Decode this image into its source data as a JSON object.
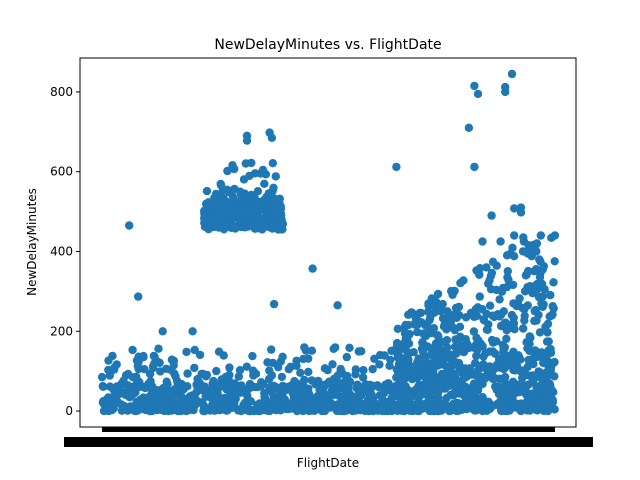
{
  "chart_data": {
    "type": "scatter",
    "title": "NewDelayMinutes vs. FlightDate",
    "xlabel": "FlightDate",
    "ylabel": "NewDelayMinutes",
    "ylim": [
      -40,
      885
    ],
    "yticks": [
      0,
      200,
      400,
      600,
      800
    ],
    "x_tick_labels_overlapping": true,
    "grid": false,
    "legend": "none",
    "marker_color": "#1f77b4",
    "x_domain_index": [
      0,
      1
    ],
    "notable_points": [
      {
        "x": 0.06,
        "y": 465
      },
      {
        "x": 0.08,
        "y": 287
      },
      {
        "x": 0.134,
        "y": 200
      },
      {
        "x": 0.2,
        "y": 200
      },
      {
        "x": 0.32,
        "y": 690
      },
      {
        "x": 0.32,
        "y": 678
      },
      {
        "x": 0.37,
        "y": 698
      },
      {
        "x": 0.375,
        "y": 685
      },
      {
        "x": 0.38,
        "y": 268
      },
      {
        "x": 0.465,
        "y": 357
      },
      {
        "x": 0.52,
        "y": 265
      },
      {
        "x": 0.65,
        "y": 612
      },
      {
        "x": 0.81,
        "y": 710
      },
      {
        "x": 0.822,
        "y": 815
      },
      {
        "x": 0.83,
        "y": 795
      },
      {
        "x": 0.822,
        "y": 612
      },
      {
        "x": 0.84,
        "y": 425
      },
      {
        "x": 0.86,
        "y": 490
      },
      {
        "x": 0.88,
        "y": 425
      },
      {
        "x": 0.89,
        "y": 812
      },
      {
        "x": 0.89,
        "y": 800
      },
      {
        "x": 0.905,
        "y": 845
      },
      {
        "x": 0.91,
        "y": 508
      },
      {
        "x": 0.925,
        "y": 510
      },
      {
        "x": 0.925,
        "y": 498
      },
      {
        "x": 0.91,
        "y": 440
      },
      {
        "x": 0.93,
        "y": 435
      },
      {
        "x": 0.94,
        "y": 395
      },
      {
        "x": 0.96,
        "y": 420
      },
      {
        "x": 0.97,
        "y": 270
      }
    ]
  }
}
